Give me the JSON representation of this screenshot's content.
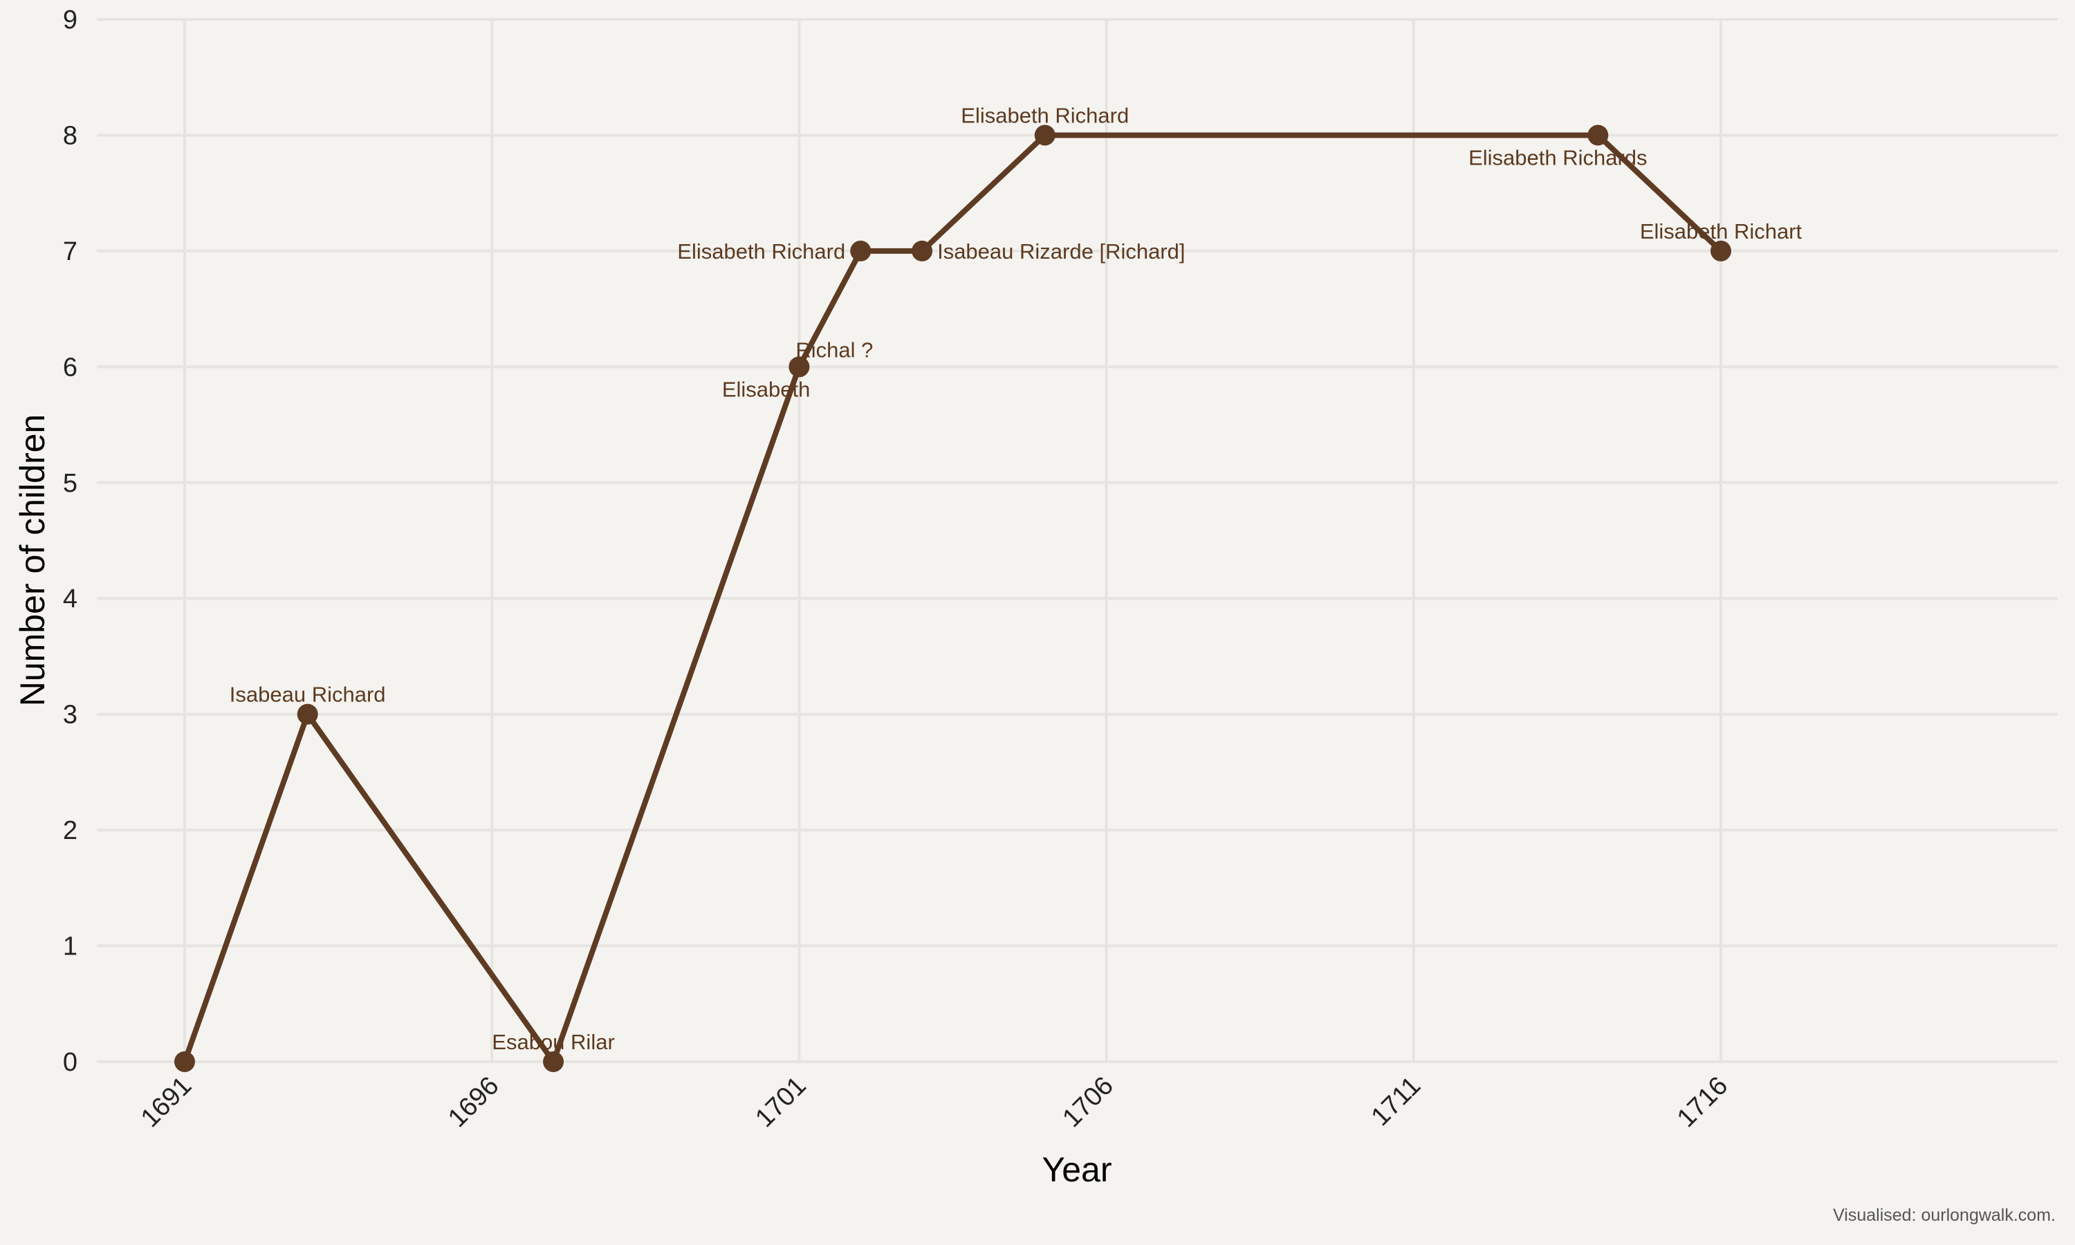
{
  "colors": {
    "background": "#F5F3EF",
    "grid": "#E6E4E0",
    "line": "#5E3B23",
    "label_text": "#5B3A21"
  },
  "caption": "Visualised: ourlongwalk.com.",
  "chart_data": {
    "type": "line",
    "xlabel": "Year",
    "ylabel": "Number of children",
    "xlim": [
      1689.6,
      1720.4
    ],
    "ylim": [
      0,
      9
    ],
    "x_ticks": [
      1691,
      1696,
      1701,
      1706,
      1711,
      1716
    ],
    "y_ticks": [
      0,
      1,
      2,
      3,
      4,
      5,
      6,
      7,
      8,
      9
    ],
    "grid": true,
    "legend": "none",
    "series": [
      {
        "points": [
          {
            "x": 1691,
            "y": 0,
            "label": ""
          },
          {
            "x": 1693,
            "y": 3,
            "label": "Isabeau Richard",
            "label_pos": "above"
          },
          {
            "x": 1697,
            "y": 0,
            "label": "Esabou Rilar",
            "label_pos": "above"
          },
          {
            "x": 1701,
            "y": 6,
            "label": "Richal ?",
            "label_pos": "above-right"
          },
          {
            "x": 1701,
            "y": 6,
            "label": "Elisabeth",
            "label_pos": "below-left"
          },
          {
            "x": 1702,
            "y": 7,
            "label": "Elisabeth Richard",
            "label_pos": "left"
          },
          {
            "x": 1703,
            "y": 7,
            "label": "Isabeau Rizarde [Richard]",
            "label_pos": "right"
          },
          {
            "x": 1705,
            "y": 8,
            "label": "Elisabeth Richard",
            "label_pos": "above"
          },
          {
            "x": 1714,
            "y": 8,
            "label": "Elisabeth Richards",
            "label_pos": "below"
          },
          {
            "x": 1716,
            "y": 7,
            "label": "Elisabeth Richart",
            "label_pos": "above"
          }
        ]
      }
    ]
  }
}
